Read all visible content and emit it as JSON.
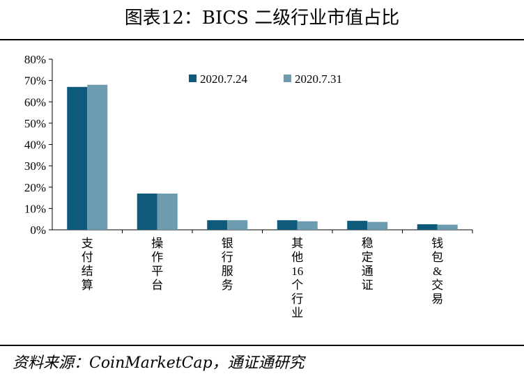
{
  "title": "图表12：BICS 二级行业市值占比",
  "source": "资料来源：CoinMarketCap，通证通研究",
  "colors": {
    "series1": "#0e5a7a",
    "series2": "#6d9cb0"
  },
  "chart_data": {
    "type": "bar",
    "categories": [
      "支付结算",
      "操作平台",
      "银行服务",
      "其他16个行业",
      "稳定通证",
      "钱包&交易"
    ],
    "series": [
      {
        "name": "2020.7.24",
        "values": [
          67,
          17,
          4.5,
          4.5,
          4.2,
          2.6
        ]
      },
      {
        "name": "2020.7.31",
        "values": [
          68,
          17,
          4.5,
          4.0,
          3.7,
          2.4
        ]
      }
    ],
    "yticks": [
      "0%",
      "10%",
      "20%",
      "30%",
      "40%",
      "50%",
      "60%",
      "70%",
      "80%"
    ],
    "ylim": [
      0,
      80
    ],
    "grid": false,
    "legend": "top-center"
  }
}
